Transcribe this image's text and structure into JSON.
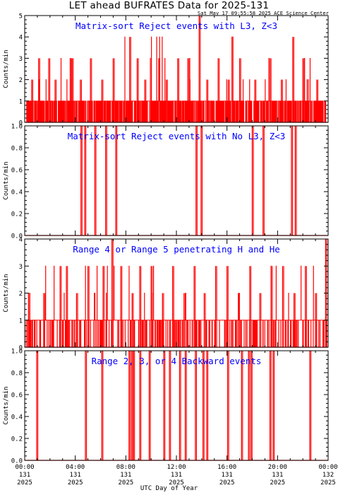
{
  "title": "LET ahead BUFRATES Data for 2025-131",
  "timestamp": "Sat May 17 09:55:58 2025 ACE Science Center",
  "xlabel": "UTC Day of Year",
  "x_ticks": [
    {
      "l1": "00:00",
      "l2": "131",
      "l3": "2025"
    },
    {
      "l1": "04:00",
      "l2": "131",
      "l3": "2025"
    },
    {
      "l1": "08:00",
      "l2": "131",
      "l3": "2025"
    },
    {
      "l1": "12:00",
      "l2": "131",
      "l3": "2025"
    },
    {
      "l1": "16:00",
      "l2": "131",
      "l3": "2025"
    },
    {
      "l1": "20:00",
      "l2": "131",
      "l3": "2025"
    },
    {
      "l1": "00:00",
      "l2": "132",
      "l3": "2025"
    }
  ],
  "colors": {
    "series": "#ff0000",
    "panel_title": "#0000ff",
    "axis": "#000000"
  },
  "chart_data": [
    {
      "type": "line",
      "title": "Matrix-sort Reject events with L3, Z<3",
      "ylabel": "Counts/min",
      "ylim": [
        0,
        5
      ],
      "yticks": [
        {
          "v": 0,
          "l": "0"
        },
        {
          "v": 1,
          "l": "1"
        },
        {
          "v": 2,
          "l": "2"
        },
        {
          "v": 3,
          "l": "3"
        },
        {
          "v": 4,
          "l": "4"
        },
        {
          "v": 5,
          "l": "5"
        }
      ],
      "xlim_hours": [
        0,
        24
      ],
      "baseline": 0,
      "dense_range": [
        0.15,
        23.85
      ],
      "dense_level": 1,
      "density": 0.5,
      "seed": 11,
      "extra_levels": [
        2,
        3,
        4
      ],
      "spikes": [
        {
          "x": 0.55,
          "y": 2
        },
        {
          "x": 1.1,
          "y": 3
        },
        {
          "x": 1.9,
          "y": 3
        },
        {
          "x": 2.4,
          "y": 2
        },
        {
          "x": 3.6,
          "y": 3
        },
        {
          "x": 3.75,
          "y": 3
        },
        {
          "x": 4.4,
          "y": 2
        },
        {
          "x": 5.2,
          "y": 3
        },
        {
          "x": 6.1,
          "y": 2
        },
        {
          "x": 7.0,
          "y": 3
        },
        {
          "x": 8.3,
          "y": 4
        },
        {
          "x": 8.9,
          "y": 3
        },
        {
          "x": 9.5,
          "y": 2
        },
        {
          "x": 10.6,
          "y": 3
        },
        {
          "x": 11.2,
          "y": 2
        },
        {
          "x": 12.1,
          "y": 3
        },
        {
          "x": 12.9,
          "y": 3
        },
        {
          "x": 13.8,
          "y": 5
        },
        {
          "x": 14.4,
          "y": 2
        },
        {
          "x": 15.3,
          "y": 3
        },
        {
          "x": 16.1,
          "y": 2
        },
        {
          "x": 17.0,
          "y": 3
        },
        {
          "x": 18.2,
          "y": 2
        },
        {
          "x": 19.4,
          "y": 3
        },
        {
          "x": 20.3,
          "y": 2
        },
        {
          "x": 21.2,
          "y": 4
        },
        {
          "x": 22.0,
          "y": 3
        },
        {
          "x": 23.1,
          "y": 2
        }
      ]
    },
    {
      "type": "line",
      "title": "Matrix-sort Reject events with No L3, Z<3",
      "ylabel": "Counts/min",
      "ylim": [
        0,
        1
      ],
      "yticks": [
        {
          "v": 0,
          "l": "0.0"
        },
        {
          "v": 0.2,
          "l": "0.2"
        },
        {
          "v": 0.4,
          "l": "0.4"
        },
        {
          "v": 0.6,
          "l": "0.6"
        },
        {
          "v": 0.8,
          "l": "0.8"
        },
        {
          "v": 1,
          "l": "1.0"
        }
      ],
      "xlim_hours": [
        0,
        24
      ],
      "baseline": 0,
      "spikes": [
        {
          "x": 4.45,
          "y": 1
        },
        {
          "x": 4.75,
          "y": 1
        },
        {
          "x": 5.55,
          "y": 1
        },
        {
          "x": 6.4,
          "y": 1
        },
        {
          "x": 7.2,
          "y": 1
        },
        {
          "x": 13.55,
          "y": 1
        },
        {
          "x": 13.95,
          "y": 1
        },
        {
          "x": 18.0,
          "y": 1
        },
        {
          "x": 18.85,
          "y": 1
        },
        {
          "x": 21.1,
          "y": 1
        },
        {
          "x": 21.4,
          "y": 1
        }
      ]
    },
    {
      "type": "line",
      "title": "Range 4 or Range 5 penetrating H and He",
      "ylabel": "Counts/min",
      "ylim": [
        0,
        4
      ],
      "yticks": [
        {
          "v": 0,
          "l": "0"
        },
        {
          "v": 1,
          "l": "1"
        },
        {
          "v": 2,
          "l": "2"
        },
        {
          "v": 3,
          "l": "3"
        },
        {
          "v": 4,
          "l": "4"
        }
      ],
      "xlim_hours": [
        0,
        24
      ],
      "baseline": 0,
      "dense_range": [
        0.1,
        23.9
      ],
      "dense_level": 1,
      "density": 0.85,
      "seed": 29,
      "extra_levels": [
        2,
        3
      ],
      "spikes": [
        {
          "x": 0.3,
          "y": 2
        },
        {
          "x": 1.5,
          "y": 2
        },
        {
          "x": 2.8,
          "y": 3
        },
        {
          "x": 3.3,
          "y": 3
        },
        {
          "x": 4.1,
          "y": 2
        },
        {
          "x": 5.0,
          "y": 3
        },
        {
          "x": 6.2,
          "y": 3
        },
        {
          "x": 6.9,
          "y": 4
        },
        {
          "x": 7.6,
          "y": 3
        },
        {
          "x": 8.5,
          "y": 2
        },
        {
          "x": 9.1,
          "y": 3
        },
        {
          "x": 10.0,
          "y": 3
        },
        {
          "x": 10.9,
          "y": 2
        },
        {
          "x": 11.7,
          "y": 3
        },
        {
          "x": 12.6,
          "y": 2
        },
        {
          "x": 13.4,
          "y": 3
        },
        {
          "x": 14.2,
          "y": 2
        },
        {
          "x": 15.1,
          "y": 3
        },
        {
          "x": 16.0,
          "y": 3
        },
        {
          "x": 16.9,
          "y": 2
        },
        {
          "x": 17.8,
          "y": 3
        },
        {
          "x": 18.6,
          "y": 2
        },
        {
          "x": 19.5,
          "y": 3
        },
        {
          "x": 20.4,
          "y": 3
        },
        {
          "x": 21.3,
          "y": 2
        },
        {
          "x": 22.2,
          "y": 3
        },
        {
          "x": 23.0,
          "y": 2
        },
        {
          "x": 23.8,
          "y": 4
        }
      ]
    },
    {
      "type": "line",
      "title": "Range 2, 3, or 4 Backward events",
      "ylabel": "Counts/min",
      "ylim": [
        0,
        1
      ],
      "yticks": [
        {
          "v": 0,
          "l": "0.0"
        },
        {
          "v": 0.2,
          "l": "0.2"
        },
        {
          "v": 0.4,
          "l": "0.4"
        },
        {
          "v": 0.6,
          "l": "0.6"
        },
        {
          "v": 0.8,
          "l": "0.8"
        },
        {
          "v": 1,
          "l": "1.0"
        }
      ],
      "xlim_hours": [
        0,
        24
      ],
      "baseline": 0,
      "spikes": [
        {
          "x": 0.95,
          "y": 1
        },
        {
          "x": 4.8,
          "y": 1
        },
        {
          "x": 6.1,
          "y": 1
        },
        {
          "x": 8.25,
          "y": 1
        },
        {
          "x": 8.45,
          "y": 1
        },
        {
          "x": 8.6,
          "y": 1
        },
        {
          "x": 9.1,
          "y": 1
        },
        {
          "x": 9.85,
          "y": 1
        },
        {
          "x": 11.0,
          "y": 1
        },
        {
          "x": 11.45,
          "y": 1
        },
        {
          "x": 12.25,
          "y": 1
        },
        {
          "x": 12.7,
          "y": 1
        },
        {
          "x": 13.5,
          "y": 1
        },
        {
          "x": 14.1,
          "y": 1
        },
        {
          "x": 14.4,
          "y": 1
        },
        {
          "x": 16.05,
          "y": 1
        },
        {
          "x": 17.15,
          "y": 1
        },
        {
          "x": 17.7,
          "y": 1
        },
        {
          "x": 17.9,
          "y": 1
        },
        {
          "x": 19.4,
          "y": 1
        },
        {
          "x": 19.65,
          "y": 1
        },
        {
          "x": 22.55,
          "y": 1
        }
      ]
    }
  ]
}
